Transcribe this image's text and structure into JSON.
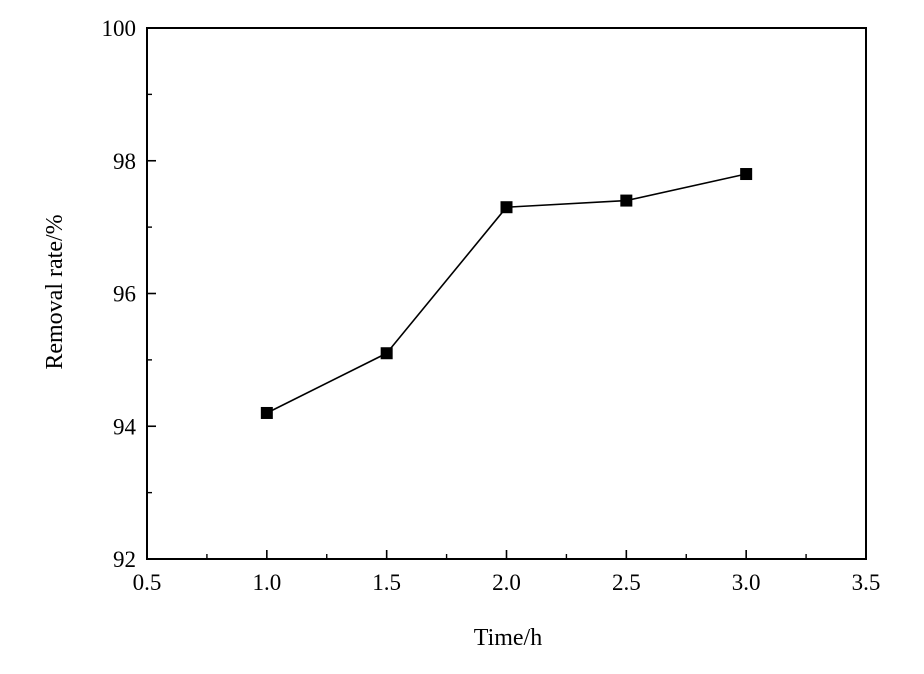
{
  "chart_data": {
    "type": "line",
    "title": "",
    "xlabel": "Time/h",
    "ylabel": "Removal rate/%",
    "xlim": [
      0.5,
      3.5
    ],
    "ylim": [
      92,
      100
    ],
    "xticks": [
      "0.5",
      "1.0",
      "1.5",
      "2.0",
      "2.5",
      "3.0",
      "3.5"
    ],
    "yticks": [
      "92",
      "94",
      "96",
      "98",
      "100"
    ],
    "grid": false,
    "marker": "square",
    "line_color": "#000000",
    "series": [
      {
        "x": [
          1.0,
          1.5,
          2.0,
          2.5,
          3.0
        ],
        "values": [
          94.2,
          95.1,
          97.3,
          97.4,
          97.8
        ]
      }
    ]
  }
}
